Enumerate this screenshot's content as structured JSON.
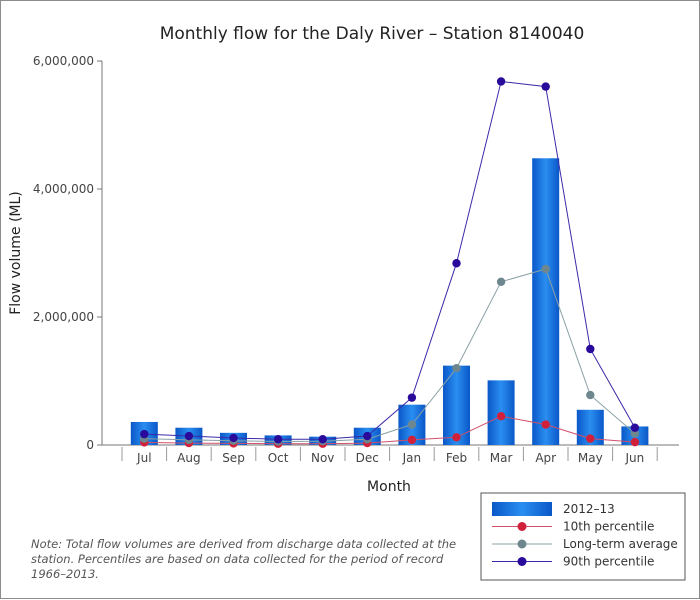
{
  "chart_data": {
    "type": "bar",
    "title": "Monthly flow for the Daly River – Station 8140040",
    "xlabel": "Month",
    "ylabel": "Flow volume (ML)",
    "ylim": [
      0,
      6000000
    ],
    "yticks": [
      0,
      2000000,
      4000000,
      6000000
    ],
    "ytick_labels": [
      "0",
      "2,000,000",
      "4,000,000",
      "6,000,000"
    ],
    "grid": false,
    "legend_position": "bottom-right",
    "categories": [
      "Jul",
      "Aug",
      "Sep",
      "Oct",
      "Nov",
      "Dec",
      "Jan",
      "Feb",
      "Mar",
      "Apr",
      "May",
      "Jun"
    ],
    "bar_series": {
      "name": "2012–13",
      "color": "#1a6fd6",
      "values": [
        360000,
        270000,
        190000,
        150000,
        130000,
        270000,
        630000,
        1240000,
        1010000,
        4480000,
        550000,
        290000
      ]
    },
    "line_series": [
      {
        "name": "10th percentile",
        "color": "#d0203a",
        "line_color": "#d0506a",
        "values": [
          40000,
          30000,
          25000,
          20000,
          20000,
          30000,
          80000,
          120000,
          450000,
          320000,
          100000,
          45000
        ]
      },
      {
        "name": "Long-term average",
        "color": "#6e868e",
        "line_color": "#8aa0a6",
        "values": [
          100000,
          80000,
          65000,
          55000,
          60000,
          90000,
          320000,
          1200000,
          2550000,
          2750000,
          780000,
          180000
        ]
      },
      {
        "name": "90th percentile",
        "color": "#2a0a9a",
        "line_color": "#3a2aa8",
        "values": [
          170000,
          140000,
          110000,
          90000,
          90000,
          140000,
          740000,
          2840000,
          5680000,
          5600000,
          1500000,
          270000
        ]
      }
    ]
  },
  "note": "Note: Total flow volumes are derived from discharge data collected at the station. Percentiles are based on data collected for the period of record 1966–2013."
}
